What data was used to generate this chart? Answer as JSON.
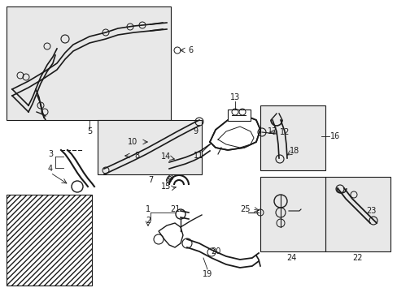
{
  "bg_color": "#ffffff",
  "line_color": "#1a1a1a",
  "shaded_bg": "#e8e8e8",
  "figsize": [
    4.89,
    3.6
  ],
  "dpi": 100,
  "xlim": [
    0,
    489
  ],
  "ylim": [
    0,
    360
  ]
}
